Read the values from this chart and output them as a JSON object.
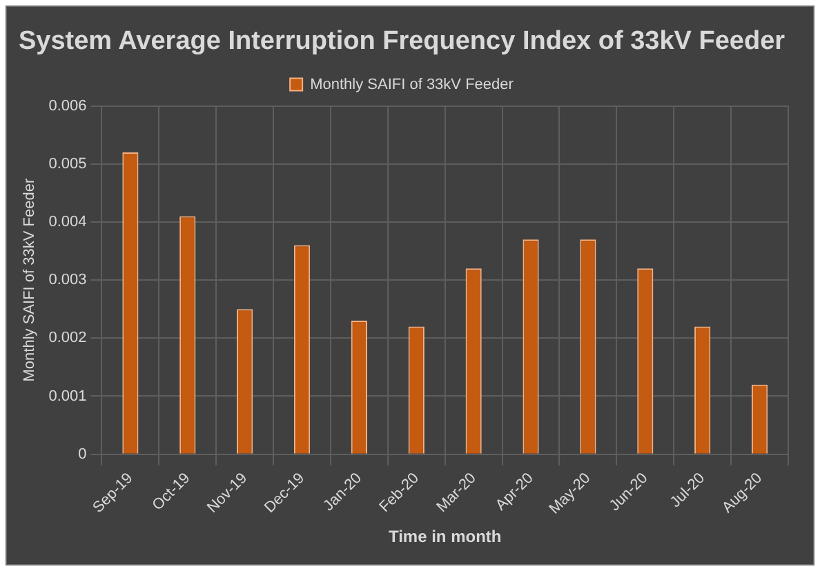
{
  "chart_data": {
    "type": "bar",
    "title": "System Average Interruption Frequency Index of 33kV Feeder",
    "xlabel": "Time in month",
    "ylabel": "Monthly SAIFI of 33kV Feeder",
    "categories": [
      "Sep-19",
      "Oct-19",
      "Nov-19",
      "Dec-19",
      "Jan-20",
      "Feb-20",
      "Mar-20",
      "Apr-20",
      "May-20",
      "Jun-20",
      "Jul-20",
      "Aug-20"
    ],
    "series": [
      {
        "name": "Monthly SAIFI of 33kV Feeder",
        "color": "#c55a11",
        "values": [
          0.0052,
          0.0041,
          0.0025,
          0.0036,
          0.0023,
          0.0022,
          0.0032,
          0.0037,
          0.0037,
          0.0032,
          0.0022,
          0.0012
        ]
      }
    ],
    "ylim": [
      0,
      0.006
    ],
    "yticks": [
      0,
      0.001,
      0.002,
      0.003,
      0.004,
      0.005,
      0.006
    ],
    "grid": true,
    "legend": "top"
  }
}
